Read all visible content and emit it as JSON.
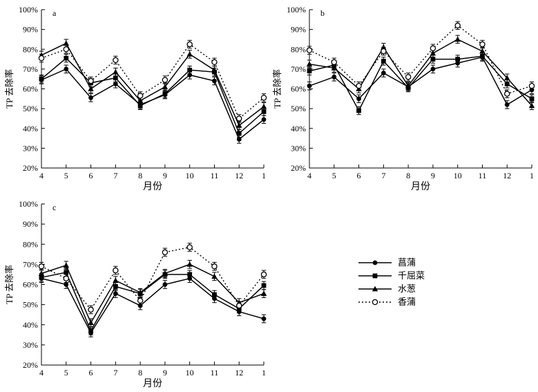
{
  "figure": {
    "background": "#ffffff",
    "ink": "#000000",
    "description": "Three-panel line chart of monthly TP removal rate for four wetland plants, with error bars"
  },
  "axes": {
    "y_label": "TP 去除率",
    "x_label": "月份",
    "y_ticks": [
      "100%",
      "90%",
      "80%",
      "70%",
      "60%",
      "50%",
      "40%",
      "30%",
      "20%"
    ],
    "x_ticks": [
      "4",
      "5",
      "6",
      "7",
      "8",
      "9",
      "10",
      "11",
      "12",
      "1"
    ],
    "y_min": 20,
    "y_max": 100,
    "y_step": 10
  },
  "legend": {
    "items": [
      {
        "label": "菖蒲",
        "marker": "filled-circle",
        "line": "solid"
      },
      {
        "label": "千屈菜",
        "marker": "filled-square",
        "line": "solid"
      },
      {
        "label": "水葱",
        "marker": "filled-triangle",
        "line": "solid"
      },
      {
        "label": "香蒲",
        "marker": "open-circle",
        "line": "dotted"
      }
    ]
  },
  "chart_data": [
    {
      "type": "line",
      "panel": "a",
      "x": [
        4,
        5,
        6,
        7,
        8,
        9,
        10,
        11,
        12,
        1
      ],
      "xlabel": "月份",
      "ylabel": "TP 去除率",
      "ylim": [
        20,
        100
      ],
      "y_unit": "%",
      "grid": false,
      "error_bar_pct": 2,
      "series": [
        {
          "name": "菖蒲",
          "marker": "filled-circle",
          "line": "solid",
          "values": [
            64.5,
            70,
            55.5,
            62.5,
            52,
            57,
            67,
            64,
            34.5,
            44.5
          ]
        },
        {
          "name": "千屈菜",
          "marker": "filled-square",
          "line": "solid",
          "values": [
            65,
            75.5,
            63,
            65.5,
            51.5,
            57.5,
            69.5,
            68.5,
            37.5,
            48.5
          ]
        },
        {
          "name": "水葱",
          "marker": "filled-triangle",
          "line": "solid",
          "values": [
            77,
            83,
            60,
            68.5,
            54,
            61,
            77.5,
            69.5,
            41.5,
            51
          ]
        },
        {
          "name": "香蒲",
          "marker": "open-circle",
          "line": "dotted",
          "values": [
            75.5,
            80,
            64,
            74.5,
            56.5,
            64.5,
            82.5,
            73.5,
            45,
            55.5
          ]
        }
      ]
    },
    {
      "type": "line",
      "panel": "b",
      "x": [
        4,
        5,
        6,
        7,
        8,
        9,
        10,
        11,
        12,
        1
      ],
      "xlabel": "月份",
      "ylabel": "TP 去除率",
      "ylim": [
        20,
        100
      ],
      "y_unit": "%",
      "grid": false,
      "error_bar_pct": 2,
      "series": [
        {
          "name": "菖蒲",
          "marker": "filled-circle",
          "line": "solid",
          "values": [
            61.5,
            66,
            55,
            68,
            61,
            70,
            73,
            76,
            52,
            59.5
          ]
        },
        {
          "name": "千屈菜",
          "marker": "filled-square",
          "line": "solid",
          "values": [
            69,
            72,
            49,
            74,
            60.5,
            75,
            75,
            76.5,
            62.5,
            55
          ]
        },
        {
          "name": "水葱",
          "marker": "filled-triangle",
          "line": "solid",
          "values": [
            72.5,
            70.5,
            60,
            81,
            61.5,
            78,
            85,
            79,
            65.5,
            51.5
          ]
        },
        {
          "name": "香蒲",
          "marker": "open-circle",
          "line": "dotted",
          "values": [
            79.5,
            73.5,
            61.5,
            79,
            66,
            80.5,
            92,
            82.5,
            57.5,
            61.5
          ]
        }
      ]
    },
    {
      "type": "line",
      "panel": "c",
      "x": [
        4,
        5,
        6,
        7,
        8,
        9,
        10,
        11,
        12,
        1
      ],
      "xlabel": "月份",
      "ylabel": "TP 去除率",
      "ylim": [
        20,
        100
      ],
      "y_unit": "%",
      "grid": false,
      "error_bar_pct": 2,
      "series": [
        {
          "name": "菖蒲",
          "marker": "filled-circle",
          "line": "solid",
          "values": [
            63,
            60,
            36,
            55.5,
            49.5,
            60,
            63,
            53,
            46.5,
            43
          ]
        },
        {
          "name": "千屈菜",
          "marker": "filled-square",
          "line": "solid",
          "values": [
            63.5,
            66,
            37,
            59,
            55.5,
            65,
            65,
            55,
            48,
            59.5
          ]
        },
        {
          "name": "水葱",
          "marker": "filled-triangle",
          "line": "solid",
          "values": [
            65.5,
            69.5,
            41,
            62,
            56,
            65.5,
            70,
            64,
            51,
            55.5
          ]
        },
        {
          "name": "香蒲",
          "marker": "open-circle",
          "line": "dotted",
          "values": [
            69,
            63,
            47.5,
            67,
            52,
            76,
            78.5,
            69,
            49.5,
            65
          ]
        }
      ]
    }
  ]
}
